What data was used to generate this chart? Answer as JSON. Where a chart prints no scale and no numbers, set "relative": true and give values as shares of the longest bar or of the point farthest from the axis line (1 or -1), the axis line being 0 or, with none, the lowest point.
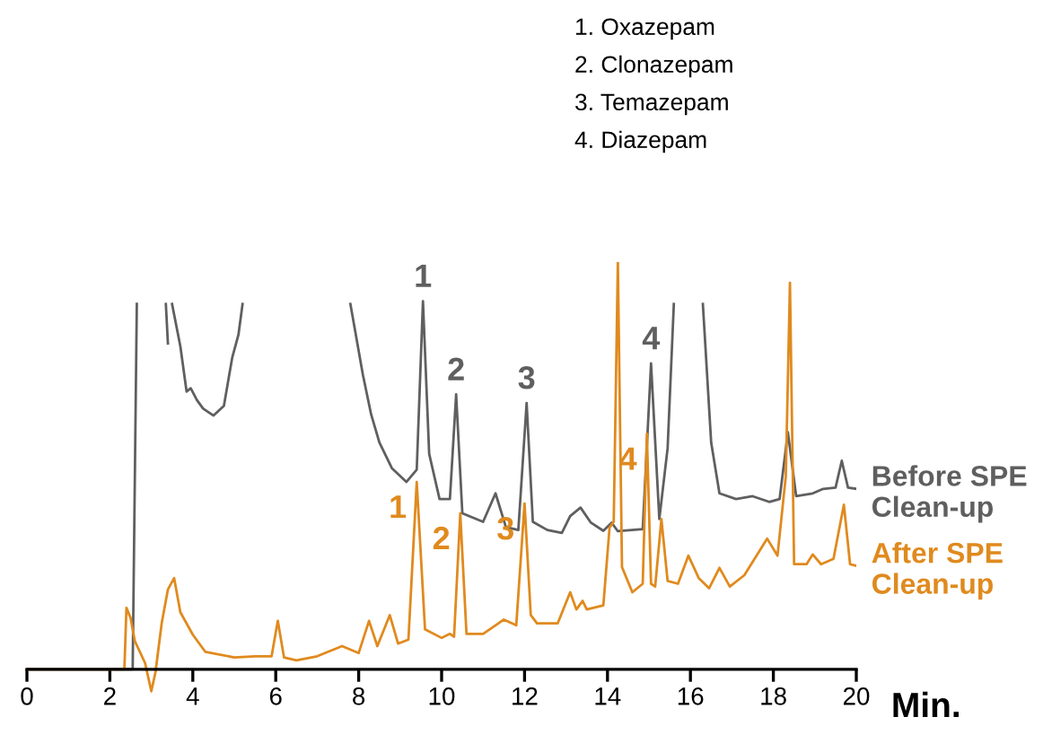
{
  "chart_data": {
    "type": "line",
    "relative": true,
    "xlabel": "Min.",
    "xlim": [
      0,
      20
    ],
    "xticks": [
      0,
      2,
      4,
      6,
      8,
      10,
      12,
      14,
      16,
      18,
      20
    ],
    "grid": false,
    "legend": false,
    "marker": "none",
    "line_style": "solid",
    "annotations": [
      "1. Oxazepam",
      "2. Clonazepam",
      "3. Temazepam",
      "4. Diazepam",
      {
        "text": "1",
        "x": 9.55,
        "y": 0.904
      },
      {
        "text": "2",
        "x": 10.35,
        "y": 0.675
      },
      {
        "text": "3",
        "x": 12.05,
        "y": 0.654
      },
      {
        "text": "4",
        "x": 15.05,
        "y": 0.751
      },
      {
        "text": "1",
        "x": 9.4,
        "y": 0.46
      },
      {
        "text": "2",
        "x": 10.45,
        "y": 0.383
      },
      {
        "text": "3",
        "x": 12.0,
        "y": 0.407
      },
      {
        "text": "4",
        "x": 14.95,
        "y": 0.578
      }
    ],
    "series": [
      {
        "name": "Before SPE\nClean-up",
        "color": "#5f5f5f",
        "x": [
          0,
          2.55,
          2.65,
          2.7,
          3.35,
          3.4,
          3.45,
          3.5,
          3.7,
          3.85,
          3.95,
          4.1,
          4.25,
          4.5,
          4.75,
          4.95,
          5.1,
          5.2,
          5.3,
          7.7,
          7.8,
          8.1,
          8.3,
          8.5,
          8.8,
          9.15,
          9.4,
          9.55,
          9.7,
          9.95,
          10.2,
          10.35,
          10.5,
          11.0,
          11.3,
          11.55,
          11.85,
          12.05,
          12.2,
          12.55,
          12.9,
          13.1,
          13.35,
          13.6,
          13.9,
          14.1,
          14.25,
          14.85,
          15.05,
          15.25,
          15.45,
          15.6,
          15.7,
          16.2,
          16.3,
          16.5,
          16.7,
          17.1,
          17.5,
          17.9,
          18.15,
          18.35,
          18.55,
          18.95,
          19.2,
          19.5,
          19.65,
          19.8,
          20
        ],
        "values": [
          0,
          0,
          0.897,
          null,
          0.897,
          0.8,
          null,
          0.897,
          0.793,
          0.682,
          0.69,
          0.661,
          0.64,
          0.623,
          0.647,
          0.765,
          0.821,
          0.897,
          null,
          null,
          0.897,
          0.724,
          0.626,
          0.557,
          0.494,
          0.46,
          0.49,
          0.904,
          0.529,
          0.418,
          0.418,
          0.675,
          0.383,
          0.362,
          0.432,
          0.349,
          0.342,
          0.654,
          0.362,
          0.342,
          0.335,
          0.376,
          0.397,
          0.36,
          0.34,
          0.36,
          0.339,
          0.344,
          0.751,
          0.369,
          0.543,
          0.897,
          null,
          null,
          0.897,
          0.557,
          0.432,
          0.418,
          0.425,
          0.411,
          0.418,
          0.582,
          0.425,
          0.432,
          0.443,
          0.446,
          0.512,
          0.446,
          0.443
        ]
      },
      {
        "name": "After SPE\nClean-up",
        "color": "#e08a1e",
        "x": [
          0,
          2.35,
          2.4,
          2.5,
          2.6,
          2.85,
          3.0,
          3.1,
          3.25,
          3.4,
          3.55,
          3.7,
          4.0,
          4.3,
          5.0,
          5.5,
          5.9,
          6.05,
          6.2,
          6.5,
          7.0,
          7.6,
          8.0,
          8.25,
          8.45,
          8.75,
          8.95,
          9.2,
          9.4,
          9.6,
          10.0,
          10.2,
          10.3,
          10.45,
          10.6,
          11.0,
          11.3,
          11.5,
          11.8,
          12.0,
          12.15,
          12.3,
          12.8,
          13.1,
          13.25,
          13.4,
          13.5,
          13.9,
          14.05,
          14.15,
          14.25,
          14.35,
          14.6,
          14.85,
          14.95,
          15.05,
          15.15,
          15.3,
          15.45,
          15.7,
          15.95,
          16.2,
          16.45,
          16.7,
          16.95,
          17.3,
          17.85,
          18.1,
          18.3,
          18.4,
          18.5,
          18.8,
          18.95,
          19.15,
          19.45,
          19.7,
          19.85,
          20
        ],
        "values": [
          0,
          0,
          0.151,
          0.126,
          0.07,
          0.015,
          -0.054,
          -0.007,
          0.113,
          0.196,
          0.224,
          0.14,
          0.085,
          0.043,
          0.029,
          0.032,
          0.032,
          0.119,
          0.029,
          0.022,
          0.032,
          0.057,
          0.04,
          0.119,
          0.057,
          0.133,
          0.063,
          0.073,
          0.46,
          0.098,
          0.077,
          0.087,
          0.08,
          0.383,
          0.087,
          0.087,
          0.108,
          0.122,
          0.108,
          0.407,
          0.133,
          0.113,
          0.113,
          0.189,
          0.147,
          0.168,
          0.147,
          0.157,
          0.348,
          0.362,
          1.0,
          0.251,
          0.189,
          0.21,
          0.578,
          0.21,
          0.203,
          0.369,
          0.217,
          0.21,
          0.279,
          0.224,
          0.199,
          0.249,
          0.203,
          0.231,
          0.321,
          0.279,
          0.474,
          0.949,
          0.258,
          0.258,
          0.282,
          0.258,
          0.271,
          0.404,
          0.258,
          0.254
        ]
      }
    ]
  }
}
